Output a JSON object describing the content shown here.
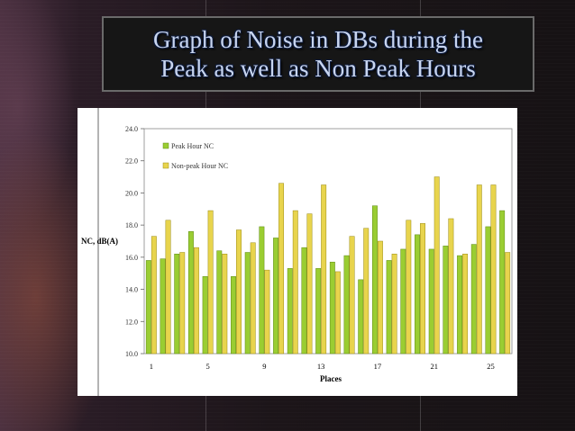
{
  "slide": {
    "title_line1": "Graph of Noise in DBs during the",
    "title_line2": "Peak as well as Non Peak Hours"
  },
  "colors": {
    "peak": "#9acd32",
    "peak_stroke": "#5e8a14",
    "nonpeak": "#e8d44d",
    "nonpeak_stroke": "#9a8a12"
  },
  "chart_data": {
    "type": "bar",
    "title": "",
    "xlabel": "Places",
    "ylabel": "NC, dB(A)",
    "ylim": [
      10.0,
      24.0
    ],
    "yticks": [
      "10.0",
      "12.0",
      "14.0",
      "16.0",
      "18.0",
      "20.0",
      "22.0",
      "24.0"
    ],
    "categories": [
      "1",
      "2",
      "3",
      "4",
      "5",
      "6",
      "7",
      "8",
      "9",
      "10",
      "11",
      "12",
      "13",
      "14",
      "15",
      "16",
      "17",
      "18",
      "19",
      "20",
      "21",
      "22",
      "23",
      "24",
      "25",
      "26"
    ],
    "xticks_shown": [
      "1",
      "5",
      "9",
      "13",
      "17",
      "21",
      "25"
    ],
    "legend_position": "top-left",
    "series": [
      {
        "name": "Peak Hour NC",
        "values": [
          15.8,
          15.9,
          16.2,
          17.6,
          14.8,
          16.4,
          14.8,
          16.3,
          17.9,
          17.2,
          15.3,
          16.6,
          15.3,
          15.7,
          16.1,
          14.6,
          19.2,
          15.8,
          16.5,
          17.4,
          16.5,
          16.7,
          16.1,
          16.8,
          17.9,
          18.9
        ]
      },
      {
        "name": "Non-peak Hour NC",
        "values": [
          17.3,
          18.3,
          16.3,
          16.6,
          18.9,
          16.2,
          17.7,
          16.9,
          15.2,
          20.6,
          18.9,
          18.7,
          20.5,
          15.1,
          17.3,
          17.8,
          17.0,
          16.2,
          18.3,
          18.1,
          21.0,
          18.4,
          16.2,
          20.5,
          20.5,
          16.3
        ]
      }
    ]
  }
}
